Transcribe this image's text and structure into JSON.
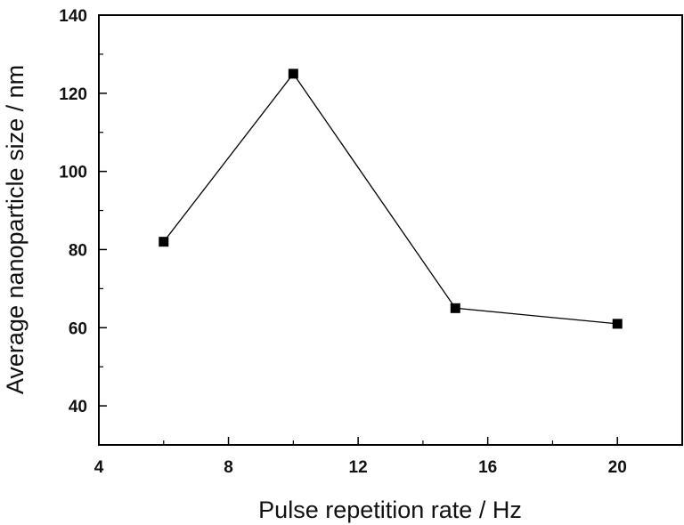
{
  "chart_data": {
    "type": "line",
    "title": "",
    "xlabel": "Pulse repetition rate / Hz",
    "ylabel": "Average nanoparticle size / nm",
    "xlim": [
      4,
      22
    ],
    "ylim": [
      30,
      140
    ],
    "xticks": [
      4,
      8,
      12,
      16,
      20
    ],
    "xticks_minor": [
      6,
      10,
      14,
      18
    ],
    "yticks": [
      40,
      60,
      80,
      100,
      120,
      140
    ],
    "yticks_minor": [
      50,
      70,
      90,
      110,
      130
    ],
    "xtick_labels": [
      "4",
      "8",
      "12",
      "16",
      "20"
    ],
    "ytick_labels": [
      "40",
      "60",
      "80",
      "100",
      "120",
      "140"
    ],
    "grid": false,
    "legend": "none",
    "marker": "square",
    "colors": {
      "line": "#000000",
      "marker": "#000000",
      "axes": "#000000"
    },
    "series": [
      {
        "x": [
          6,
          10,
          15,
          20
        ],
        "y": [
          82,
          125,
          65,
          61
        ]
      }
    ]
  }
}
